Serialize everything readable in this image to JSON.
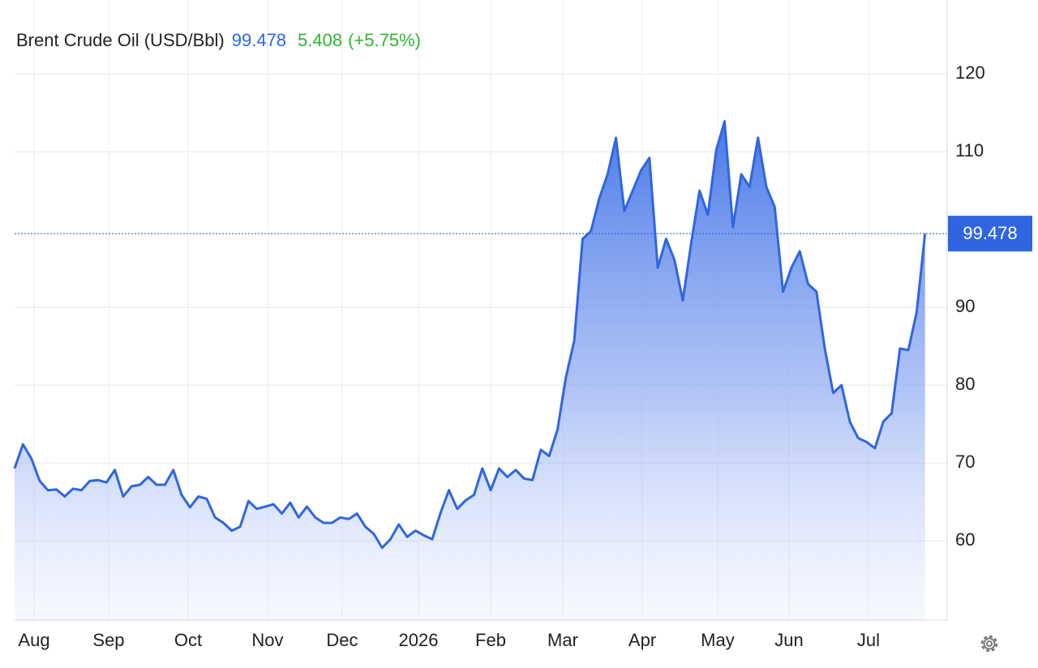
{
  "chart_data": {
    "type": "area",
    "title": "Brent Crude Oil (USD/Bbl)",
    "price": "99.478",
    "change": "5.408",
    "change_pct": "(+5.75%)",
    "color": "#2f66e0",
    "values": [
      69.3,
      72.4,
      70.6,
      67.7,
      66.5,
      66.6,
      65.7,
      66.7,
      66.5,
      67.7,
      67.8,
      67.5,
      69.1,
      65.7,
      67.0,
      67.2,
      68.2,
      67.2,
      67.2,
      69.1,
      65.9,
      64.3,
      65.7,
      65.4,
      63.0,
      62.3,
      61.3,
      61.8,
      65.1,
      64.1,
      64.4,
      64.7,
      63.5,
      64.9,
      63.0,
      64.4,
      63.0,
      62.3,
      62.3,
      63.0,
      62.8,
      63.5,
      61.8,
      60.9,
      59.1,
      60.2,
      62.1,
      60.5,
      61.3,
      60.7,
      60.2,
      63.6,
      66.5,
      64.1,
      65.2,
      65.9,
      69.3,
      66.5,
      69.3,
      68.2,
      69.1,
      68.0,
      67.8,
      71.7,
      70.9,
      74.3,
      81.0,
      85.7,
      98.8,
      99.8,
      104.0,
      107.1,
      111.8,
      102.4,
      105.0,
      107.6,
      109.2,
      95.1,
      98.8,
      96.1,
      90.9,
      98.2,
      105.0,
      101.9,
      110.2,
      113.9,
      100.3,
      107.1,
      105.5,
      111.8,
      105.5,
      102.9,
      92.0,
      95.1,
      97.2,
      93.0,
      92.0,
      84.7,
      79.0,
      80.0,
      75.3,
      73.2,
      72.7,
      71.9,
      75.3,
      76.4,
      84.7,
      84.5,
      89.4,
      99.478
    ],
    "xlim": [
      0,
      111.65
    ],
    "xticks": [
      {
        "value": 2.33,
        "label": "Aug"
      },
      {
        "value": 11.26,
        "label": "Sep"
      },
      {
        "value": 20.78,
        "label": "Oct"
      },
      {
        "value": 30.29,
        "label": "Nov"
      },
      {
        "value": 39.22,
        "label": "Dec"
      },
      {
        "value": 48.35,
        "label": "2026"
      },
      {
        "value": 56.99,
        "label": "Feb"
      },
      {
        "value": 65.63,
        "label": "Mar"
      },
      {
        "value": 75.15,
        "label": "Apr"
      },
      {
        "value": 84.17,
        "label": "May"
      },
      {
        "value": 92.72,
        "label": "Jun"
      },
      {
        "value": 102.23,
        "label": "Jul"
      }
    ],
    "ylim": [
      49.8,
      129.5
    ],
    "yticks": [
      60,
      70,
      80,
      90,
      110,
      120
    ],
    "grid": true
  }
}
